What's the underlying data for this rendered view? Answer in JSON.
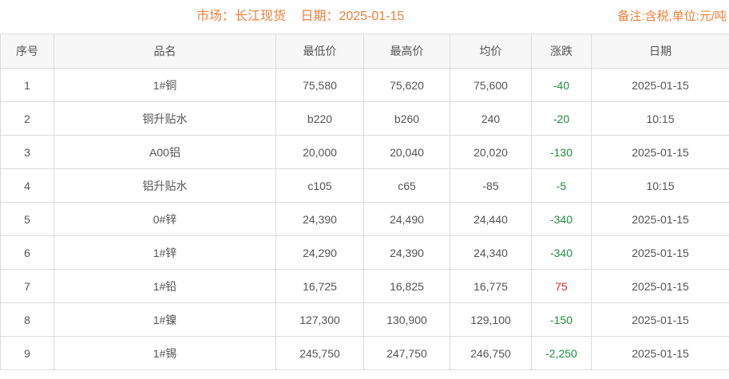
{
  "header": {
    "market_label": "市场：长江现货",
    "date_label": "日期：2025-01-15",
    "note": "备注:含税,单位:元/吨"
  },
  "table": {
    "columns": [
      "序号",
      "品名",
      "最低价",
      "最高价",
      "均价",
      "涨跌",
      "日期"
    ],
    "rows": [
      {
        "no": "1",
        "name": "1#铜",
        "low": "75,580",
        "high": "75,620",
        "avg": "75,600",
        "change": "-40",
        "change_dir": "down",
        "date": "2025-01-15"
      },
      {
        "no": "2",
        "name": "铜升贴水",
        "low": "b220",
        "high": "b260",
        "avg": "240",
        "change": "-20",
        "change_dir": "down",
        "date": "10:15"
      },
      {
        "no": "3",
        "name": "A00铝",
        "low": "20,000",
        "high": "20,040",
        "avg": "20,020",
        "change": "-130",
        "change_dir": "down",
        "date": "2025-01-15"
      },
      {
        "no": "4",
        "name": "铝升贴水",
        "low": "c105",
        "high": "c65",
        "avg": "-85",
        "change": "-5",
        "change_dir": "down",
        "date": "10:15"
      },
      {
        "no": "5",
        "name": "0#锌",
        "low": "24,390",
        "high": "24,490",
        "avg": "24,440",
        "change": "-340",
        "change_dir": "down",
        "date": "2025-01-15"
      },
      {
        "no": "6",
        "name": "1#锌",
        "low": "24,290",
        "high": "24,390",
        "avg": "24,340",
        "change": "-340",
        "change_dir": "down",
        "date": "2025-01-15"
      },
      {
        "no": "7",
        "name": "1#铅",
        "low": "16,725",
        "high": "16,825",
        "avg": "16,775",
        "change": "75",
        "change_dir": "up",
        "date": "2025-01-15"
      },
      {
        "no": "8",
        "name": "1#镍",
        "low": "127,300",
        "high": "130,900",
        "avg": "129,100",
        "change": "-150",
        "change_dir": "down",
        "date": "2025-01-15"
      },
      {
        "no": "9",
        "name": "1#锡",
        "low": "245,750",
        "high": "247,750",
        "avg": "246,750",
        "change": "-2,250",
        "change_dir": "down",
        "date": "2025-01-15"
      }
    ]
  },
  "colors": {
    "accent_orange": "#ee7f3a",
    "up_red": "#e02b2b",
    "down_green": "#1e8e3e",
    "text": "#555555",
    "border": "#dcdcdc",
    "header_bg": "#f7f7f7"
  }
}
